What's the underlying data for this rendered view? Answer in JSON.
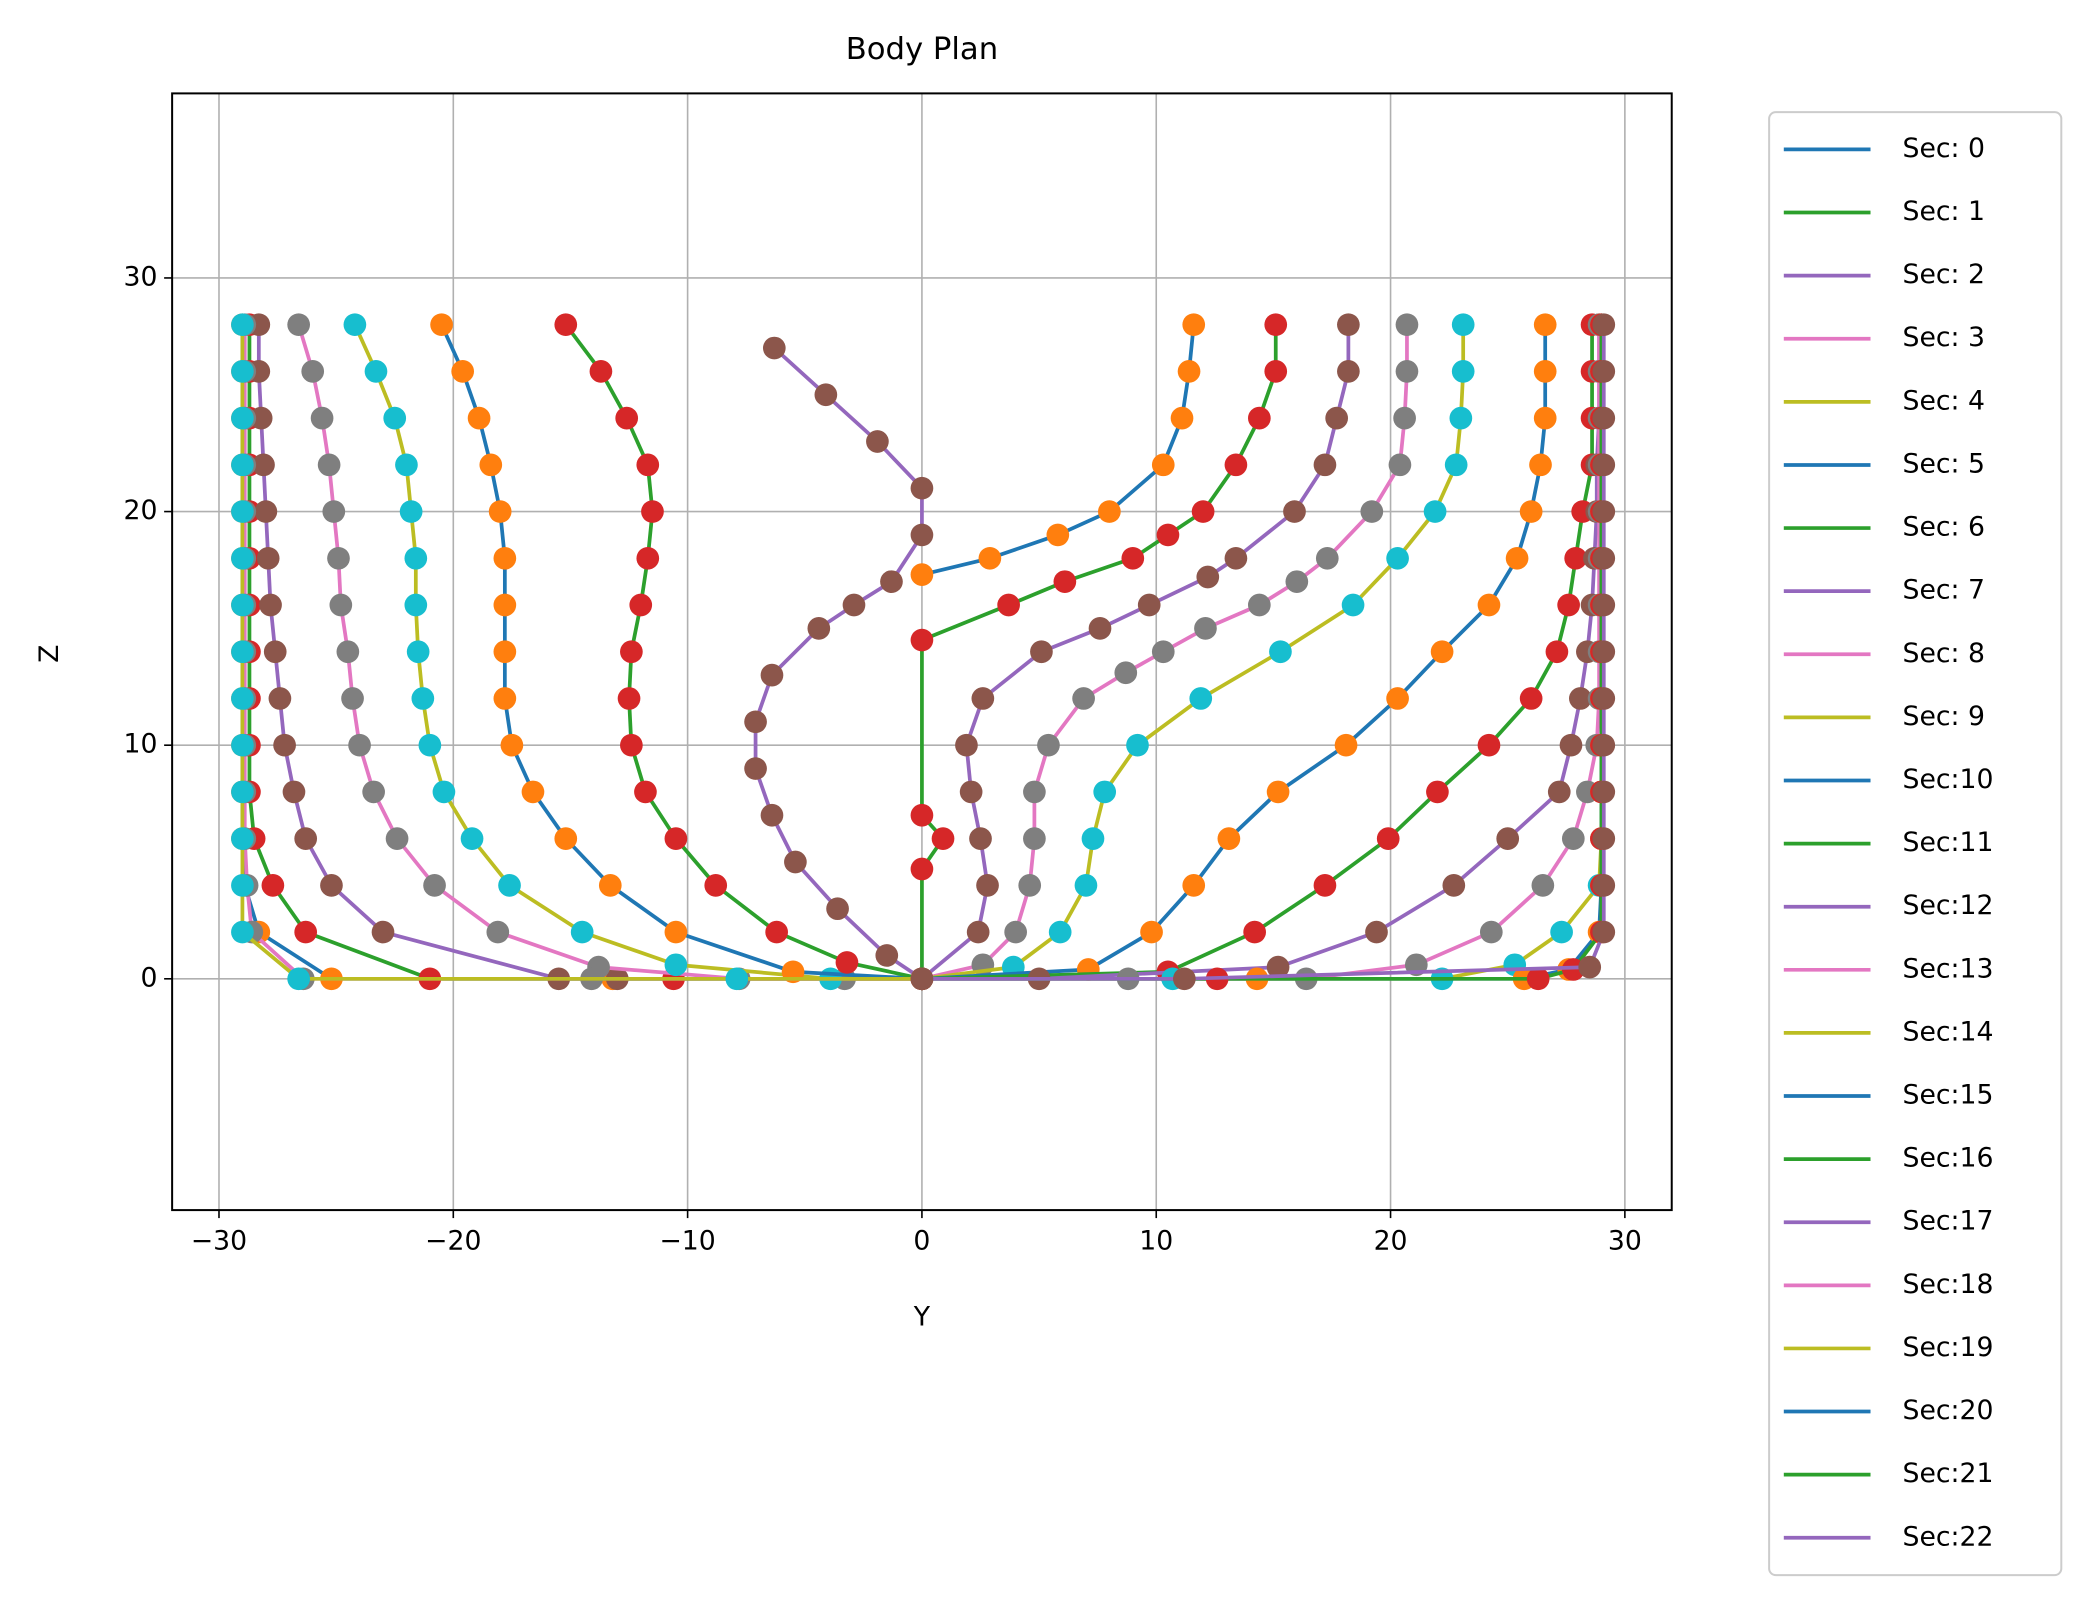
{
  "chart_data": {
    "type": "line",
    "title": "Body Plan",
    "x_label": "Y",
    "y_label": "Z",
    "xlim": [
      -32,
      32
    ],
    "ylim": [
      -9.9,
      37.9
    ],
    "xticks": [
      {
        "value": -30,
        "label": "−30"
      },
      {
        "value": -20,
        "label": "−20"
      },
      {
        "value": -10,
        "label": "−10"
      },
      0,
      10,
      20,
      30
    ],
    "yticks": [
      0,
      10,
      20,
      30
    ],
    "grid": true,
    "legend": "outside right",
    "series": [
      {
        "name": "Sec: 0",
        "color": "#1f77b4",
        "marker_color": "#ff7f0e",
        "x": [
          -29,
          -29,
          -29,
          -29,
          -29,
          -29,
          -29,
          -29,
          -29,
          -29,
          -29,
          -29,
          -28.9,
          -28.3,
          -25.2,
          -13.2,
          0
        ],
        "values": [
          28,
          26,
          24,
          22,
          20,
          18,
          16,
          14,
          12,
          10,
          8,
          6,
          4,
          2,
          0,
          0,
          0
        ]
      },
      {
        "name": "Sec: 1",
        "color": "#2ca02c",
        "marker_color": "#d62728",
        "x": [
          -28.7,
          -28.7,
          -28.7,
          -28.7,
          -28.7,
          -28.7,
          -28.7,
          -28.7,
          -28.7,
          -28.7,
          -28.7,
          -28.5,
          -27.7,
          -26.3,
          -21,
          -10.6,
          0
        ],
        "values": [
          28,
          26,
          24,
          22,
          20,
          18,
          16,
          14,
          12,
          10,
          8,
          6,
          4,
          2,
          0,
          0,
          0
        ]
      },
      {
        "name": "Sec: 2",
        "color": "#9467bd",
        "marker_color": "#8c564b",
        "x": [
          -28.3,
          -28.3,
          -28.2,
          -28.1,
          -28,
          -27.9,
          -27.8,
          -27.6,
          -27.4,
          -27.2,
          -26.8,
          -26.3,
          -25.2,
          -23,
          -15.5,
          -13,
          0
        ],
        "values": [
          28,
          26,
          24,
          22,
          20,
          18,
          16,
          14,
          12,
          10,
          8,
          6,
          4,
          2,
          0,
          0,
          0
        ]
      },
      {
        "name": "Sec: 3",
        "color": "#e377c2",
        "marker_color": "#7f7f7f",
        "x": [
          -26.6,
          -26,
          -25.6,
          -25.3,
          -25.1,
          -24.9,
          -24.8,
          -24.5,
          -24.3,
          -24,
          -23.4,
          -22.4,
          -20.8,
          -18.1,
          -13.8,
          -7.8,
          -3.3,
          0
        ],
        "values": [
          28,
          26,
          24,
          22,
          20,
          18,
          16,
          14,
          12,
          10,
          8,
          6,
          4,
          2,
          0.5,
          0,
          0,
          0
        ]
      },
      {
        "name": "Sec: 4",
        "color": "#bcbd22",
        "marker_color": "#17becf",
        "x": [
          -24.2,
          -23.3,
          -22.5,
          -22,
          -21.8,
          -21.6,
          -21.6,
          -21.5,
          -21.3,
          -21,
          -20.4,
          -19.2,
          -17.6,
          -14.5,
          -10.5,
          -3.9,
          0
        ],
        "values": [
          28,
          26,
          24,
          22,
          20,
          18,
          16,
          14,
          12,
          10,
          8,
          6,
          4,
          2,
          0.6,
          0,
          0
        ]
      },
      {
        "name": "Sec: 5",
        "color": "#1f77b4",
        "marker_color": "#ff7f0e",
        "x": [
          -20.5,
          -19.6,
          -18.9,
          -18.4,
          -18,
          -17.8,
          -17.8,
          -17.8,
          -17.8,
          -17.5,
          -16.6,
          -15.2,
          -13.3,
          -10.5,
          -5.5,
          0
        ],
        "values": [
          28,
          26,
          24,
          22,
          20,
          18,
          16,
          14,
          12,
          10,
          8,
          6,
          4,
          2,
          0.3,
          0
        ]
      },
      {
        "name": "Sec: 6",
        "color": "#2ca02c",
        "marker_color": "#d62728",
        "x": [
          -15.2,
          -13.7,
          -12.6,
          -11.7,
          -11.5,
          -11.7,
          -12,
          -12.4,
          -12.5,
          -12.4,
          -11.8,
          -10.5,
          -8.8,
          -6.2,
          -3.2,
          0
        ],
        "values": [
          28,
          26,
          24,
          22,
          20,
          18,
          16,
          14,
          12,
          10,
          8,
          6,
          4,
          2,
          0.7,
          0
        ]
      },
      {
        "name": "Sec: 7",
        "color": "#9467bd",
        "marker_color": "#8c564b",
        "x": [
          -6.3,
          -4.1,
          -1.9,
          0,
          0,
          -1.3,
          -2.9,
          -4.4,
          -6.4,
          -7.1,
          -7.1,
          -6.4,
          -5.4,
          -3.6,
          -1.5,
          0
        ],
        "values": [
          27,
          25,
          23,
          21,
          19,
          17,
          16,
          15,
          13,
          11,
          9,
          7,
          5,
          3,
          1,
          0
        ]
      },
      {
        "name": "Sec: 8",
        "color": "#e377c2",
        "marker_color": "#7f7f7f",
        "x": [
          -28.9,
          -28.9,
          -28.9,
          -28.9,
          -28.9,
          -28.9,
          -28.9,
          -28.9,
          -28.9,
          -28.9,
          -28.9,
          -28.9,
          -28.8,
          -28.6,
          -26.4,
          -14.1,
          0
        ],
        "values": [
          28,
          26,
          24,
          22,
          20,
          18,
          16,
          14,
          12,
          10,
          8,
          6,
          4,
          2,
          0,
          0,
          0
        ]
      },
      {
        "name": "Sec: 9",
        "color": "#bcbd22",
        "marker_color": "#17becf",
        "x": [
          -29,
          -29,
          -29,
          -29,
          -29,
          -29,
          -29,
          -29,
          -29,
          -29,
          -29,
          -29,
          -29,
          -29,
          -26.6,
          -7.9,
          0
        ],
        "values": [
          28,
          26,
          24,
          22,
          20,
          18,
          16,
          14,
          12,
          10,
          8,
          6,
          4,
          2,
          0,
          0,
          0
        ]
      },
      {
        "name": "Sec:10",
        "color": "#1f77b4",
        "marker_color": "#ff7f0e",
        "x": [
          11.6,
          11.4,
          11.1,
          10.3,
          8,
          5.8,
          2.9,
          0
        ],
        "values": [
          28,
          26,
          24,
          22,
          20,
          19,
          18,
          17.3
        ]
      },
      {
        "name": "Sec:11",
        "color": "#2ca02c",
        "marker_color": "#d62728",
        "x": [
          15.1,
          15.1,
          14.4,
          13.4,
          12,
          10.5,
          9,
          6.1,
          3.7,
          0,
          0,
          0.9,
          0,
          0
        ],
        "values": [
          28,
          26,
          24,
          22,
          20,
          19,
          18,
          17,
          16,
          14.5,
          7,
          6,
          4.7,
          0
        ]
      },
      {
        "name": "Sec:12",
        "color": "#9467bd",
        "marker_color": "#8c564b",
        "x": [
          18.2,
          18.2,
          17.7,
          17.2,
          15.9,
          13.4,
          12.2,
          9.7,
          7.6,
          5.1,
          2.6,
          1.9,
          2.1,
          2.5,
          2.8,
          2.4,
          0
        ],
        "values": [
          28,
          26,
          24,
          22,
          20,
          18,
          17.2,
          16,
          15,
          14,
          12,
          10,
          8,
          6,
          4,
          2,
          0
        ]
      },
      {
        "name": "Sec:13",
        "color": "#e377c2",
        "marker_color": "#7f7f7f",
        "x": [
          20.7,
          20.7,
          20.6,
          20.4,
          19.2,
          17.3,
          16,
          14.4,
          12.1,
          10.3,
          8.7,
          6.9,
          5.4,
          4.8,
          4.8,
          4.6,
          4,
          2.6,
          0
        ],
        "values": [
          28,
          26,
          24,
          22,
          20,
          18,
          17,
          16,
          15,
          14,
          13.1,
          12,
          10,
          8,
          6,
          4,
          2,
          0.6,
          0
        ]
      },
      {
        "name": "Sec:14",
        "color": "#bcbd22",
        "marker_color": "#17becf",
        "x": [
          23.1,
          23.1,
          23,
          22.8,
          21.9,
          20.3,
          18.4,
          15.3,
          11.9,
          9.2,
          7.8,
          7.3,
          7,
          5.9,
          3.9,
          0
        ],
        "values": [
          28,
          26,
          24,
          22,
          20,
          18,
          16,
          14,
          12,
          10,
          8,
          6,
          4,
          2,
          0.5,
          0
        ]
      },
      {
        "name": "Sec:15",
        "color": "#1f77b4",
        "marker_color": "#ff7f0e",
        "x": [
          26.6,
          26.6,
          26.6,
          26.4,
          26,
          25.4,
          24.2,
          22.2,
          20.3,
          18.1,
          15.2,
          13.1,
          11.6,
          9.8,
          7.1,
          0
        ],
        "values": [
          28,
          26,
          24,
          22,
          20,
          18,
          16,
          14,
          12,
          10,
          8,
          6,
          4,
          2,
          0.4,
          0
        ]
      },
      {
        "name": "Sec:16",
        "color": "#2ca02c",
        "marker_color": "#d62728",
        "x": [
          28.6,
          28.6,
          28.6,
          28.6,
          28.2,
          27.9,
          27.6,
          27.1,
          26,
          24.2,
          22,
          19.9,
          17.2,
          14.2,
          10.5,
          0
        ],
        "values": [
          28,
          26,
          24,
          22,
          20,
          18,
          16,
          14,
          12,
          10,
          8,
          6,
          4,
          2,
          0.3,
          0
        ]
      },
      {
        "name": "Sec:17",
        "color": "#9467bd",
        "marker_color": "#8c564b",
        "x": [
          28.9,
          28.9,
          28.9,
          28.8,
          28.8,
          28.7,
          28.6,
          28.4,
          28.1,
          27.7,
          27.2,
          25,
          22.7,
          19.4,
          15.2,
          5,
          0
        ],
        "values": [
          28,
          26,
          24,
          22,
          20,
          18,
          16,
          14,
          12,
          10,
          8,
          6,
          4,
          2,
          0.5,
          0,
          0
        ]
      },
      {
        "name": "Sec:18",
        "color": "#e377c2",
        "marker_color": "#7f7f7f",
        "x": [
          28.9,
          28.9,
          28.9,
          28.9,
          28.9,
          28.9,
          28.9,
          28.9,
          28.9,
          28.8,
          28.4,
          27.8,
          26.5,
          24.3,
          21.1,
          16.4,
          8.8,
          0
        ],
        "values": [
          28,
          26,
          24,
          22,
          20,
          18,
          16,
          14,
          12,
          10,
          8,
          6,
          4,
          2,
          0.6,
          0,
          0,
          0
        ]
      },
      {
        "name": "Sec:19",
        "color": "#bcbd22",
        "marker_color": "#17becf",
        "x": [
          29,
          29,
          29,
          29,
          29,
          29,
          29,
          29,
          29,
          29,
          29,
          29,
          28.9,
          27.3,
          25.3,
          22.2,
          10.7,
          0
        ],
        "values": [
          28,
          26,
          24,
          22,
          20,
          18,
          16,
          14,
          12,
          10,
          8,
          6,
          4,
          2,
          0.6,
          0,
          0,
          0
        ]
      },
      {
        "name": "Sec:20",
        "color": "#1f77b4",
        "marker_color": "#ff7f0e",
        "x": [
          29,
          29,
          29,
          29,
          29,
          29,
          29,
          29,
          29,
          29,
          29,
          29,
          29,
          28.9,
          27.6,
          25.7,
          14.3,
          0
        ],
        "values": [
          28,
          26,
          24,
          22,
          20,
          18,
          16,
          14,
          12,
          10,
          8,
          6,
          4,
          2,
          0.4,
          0,
          0,
          0
        ]
      },
      {
        "name": "Sec:21",
        "color": "#2ca02c",
        "marker_color": "#d62728",
        "x": [
          29,
          29,
          29,
          29,
          29,
          29,
          29,
          29,
          29,
          29,
          29,
          29,
          29,
          29,
          27.8,
          26.3,
          12.6,
          0
        ],
        "values": [
          28,
          26,
          24,
          22,
          20,
          18,
          16,
          14,
          12,
          10,
          8,
          6,
          4,
          2,
          0.4,
          0,
          0,
          0
        ]
      },
      {
        "name": "Sec:22",
        "color": "#9467bd",
        "marker_color": "#8c564b",
        "x": [
          29.1,
          29.1,
          29.1,
          29.1,
          29.1,
          29.1,
          29.1,
          29.1,
          29.1,
          29.1,
          29.1,
          29.1,
          29.1,
          29.1,
          28.5,
          11.2,
          0
        ],
        "values": [
          28,
          26,
          24,
          22,
          20,
          18,
          16,
          14,
          12,
          10,
          8,
          6,
          4,
          2,
          0.5,
          0,
          0
        ]
      }
    ]
  }
}
